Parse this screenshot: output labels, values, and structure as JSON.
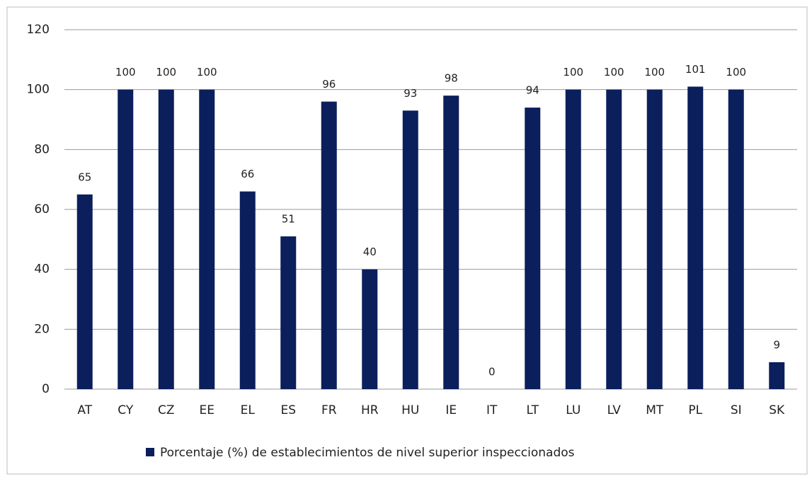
{
  "chart_data": {
    "type": "bar",
    "categories": [
      "AT",
      "CY",
      "CZ",
      "EE",
      "EL",
      "ES",
      "FR",
      "HR",
      "HU",
      "IE",
      "IT",
      "LT",
      "LU",
      "LV",
      "MT",
      "PL",
      "SI",
      "SK"
    ],
    "series": [
      {
        "name": "Porcentaje (%) de establecimientos de nivel superior inspeccionados",
        "color": "#0b1f5c",
        "values": [
          65,
          100,
          100,
          100,
          66,
          51,
          96,
          40,
          93,
          98,
          0,
          94,
          100,
          100,
          100,
          101,
          100,
          9
        ]
      }
    ],
    "ylim": [
      0,
      120
    ],
    "yticks": [
      0,
      20,
      40,
      60,
      80,
      100,
      120
    ],
    "grid": true,
    "legend": "bottom"
  }
}
